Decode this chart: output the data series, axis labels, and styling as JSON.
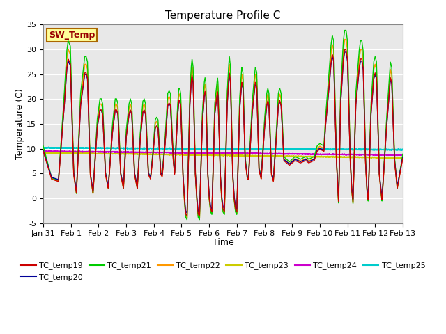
{
  "title": "Temperature Profile C",
  "xlabel": "Time",
  "ylabel": "Temperature (C)",
  "ylim": [
    -5,
    35
  ],
  "annotation": "SW_Temp",
  "legend_entries": [
    {
      "label": "TC_temp19",
      "color": "#cc0000"
    },
    {
      "label": "TC_temp20",
      "color": "#000099"
    },
    {
      "label": "TC_temp21",
      "color": "#00cc00"
    },
    {
      "label": "TC_temp22",
      "color": "#ff9900"
    },
    {
      "label": "TC_temp23",
      "color": "#cccc00"
    },
    {
      "label": "TC_temp24",
      "color": "#cc00cc"
    },
    {
      "label": "TC_temp25",
      "color": "#00cccc"
    }
  ],
  "xtick_labels": [
    "Jan 31",
    "Feb 1",
    "Feb 2",
    "Feb 3",
    "Feb 4",
    "Feb 5",
    "Feb 6",
    "Feb 7",
    "Feb 8",
    "Feb 9",
    "Feb 10",
    "Feb 11",
    "Feb 12",
    "Feb 13"
  ],
  "ytick_vals": [
    -5,
    0,
    5,
    10,
    15,
    20,
    25,
    30,
    35
  ]
}
